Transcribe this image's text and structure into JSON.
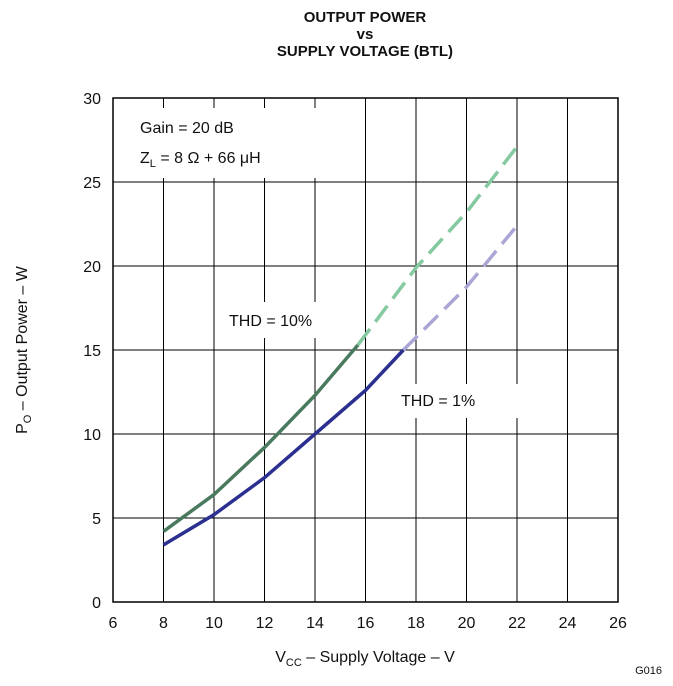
{
  "chart_data": {
    "type": "line",
    "title": [
      "OUTPUT POWER",
      "vs",
      "SUPPLY VOLTAGE (BTL)"
    ],
    "xlabel": [
      "V",
      "CC",
      " – Supply Voltage – V"
    ],
    "ylabel": [
      "P",
      "O",
      " – Output Power – W"
    ],
    "annotations": [
      [
        "Gain = 20 dB"
      ],
      [
        "Z",
        "L",
        " = 8 Ω + 66 μH"
      ],
      [
        "THD = 10%"
      ],
      [
        "THD = 1%"
      ]
    ],
    "footnote": "G016",
    "xlim": [
      6,
      26
    ],
    "xticks": [
      6,
      8,
      10,
      12,
      14,
      16,
      18,
      20,
      22,
      24,
      26
    ],
    "ylim": [
      0,
      30
    ],
    "yticks": [
      0,
      5,
      10,
      15,
      20,
      25,
      30
    ],
    "grid": true,
    "series": [
      {
        "color": "#4a7a5e",
        "dashed": false,
        "x": [
          8,
          10,
          12,
          14,
          15.7
        ],
        "values": [
          4.2,
          6.4,
          9.2,
          12.3,
          15.3
        ]
      },
      {
        "color": "#84c99f",
        "dashed": true,
        "x": [
          15.7,
          18,
          20,
          22
        ],
        "values": [
          15.3,
          19.9,
          23.2,
          27.1
        ]
      },
      {
        "color": "#2b2f8f",
        "dashed": false,
        "x": [
          8,
          10,
          12,
          14,
          16,
          17.5
        ],
        "values": [
          3.4,
          5.2,
          7.4,
          10.0,
          12.6,
          15.0
        ]
      },
      {
        "color": "#aaa7d6",
        "dashed": true,
        "x": [
          17.5,
          20,
          22
        ],
        "values": [
          15.0,
          18.75,
          22.4
        ]
      }
    ]
  }
}
